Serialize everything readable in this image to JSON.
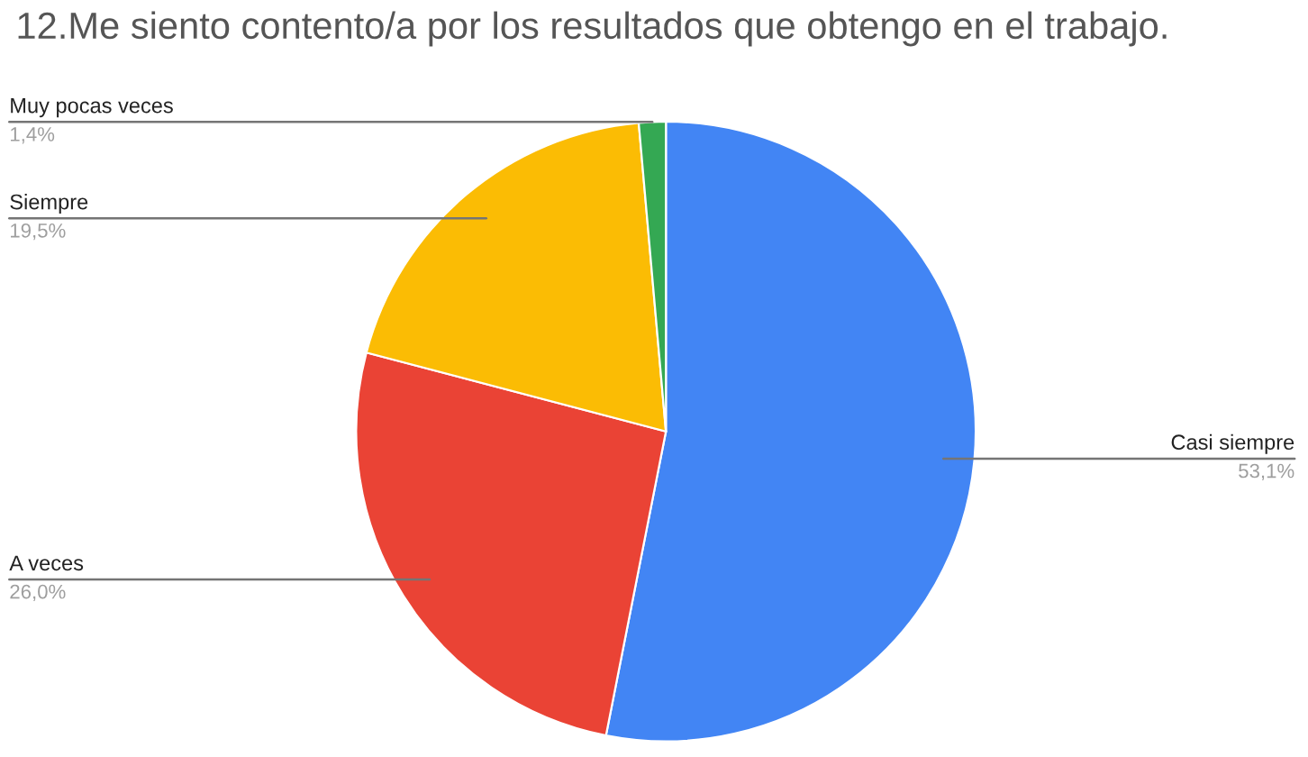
{
  "chart_data": {
    "type": "pie",
    "title": "12.Me siento contento/a por los resultados que obtengo en el trabajo.",
    "categories": [
      "Casi siempre",
      "A veces",
      "Siempre",
      "Muy pocas veces"
    ],
    "values": [
      53.1,
      26.0,
      19.5,
      1.4
    ],
    "value_labels": [
      "53,1%",
      "26,0%",
      "19,5%",
      "1,4%"
    ],
    "colors": [
      "#4285f4",
      "#ea4335",
      "#fbbc04",
      "#34a853"
    ],
    "legend": false
  }
}
